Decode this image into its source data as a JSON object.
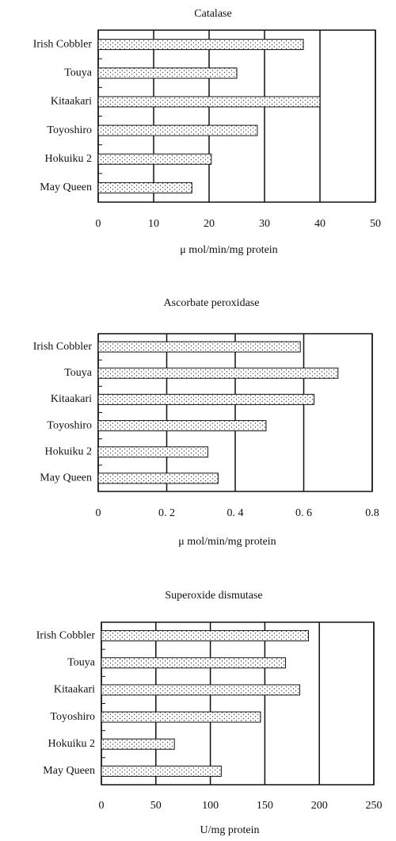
{
  "chart_data": [
    {
      "type": "bar",
      "orientation": "horizontal",
      "title": "Catalase",
      "categories": [
        "Irish Cobbler",
        "Touya",
        "Kitaakari",
        "Toyoshiro",
        "Hokuiku 2",
        "May Queen"
      ],
      "values": [
        37,
        25,
        40,
        28.7,
        20.4,
        16.9
      ],
      "xlim": [
        0,
        50
      ],
      "xticks": [
        0,
        10,
        20,
        30,
        40,
        50
      ],
      "grid": true,
      "x_label": "μ mol/min/mg protein"
    },
    {
      "type": "bar",
      "orientation": "horizontal",
      "title": "Ascorbate peroxidase",
      "categories": [
        "Irish Cobbler",
        "Touya",
        "Kitaakari",
        "Toyoshiro",
        "Hokuiku 2",
        "May Queen"
      ],
      "values": [
        0.59,
        0.7,
        0.63,
        0.49,
        0.32,
        0.35
      ],
      "xlim": [
        0,
        0.8
      ],
      "xticks": [
        0,
        {
          "value": 0.2,
          "label": "0. 2"
        },
        {
          "value": 0.4,
          "label": "0. 4"
        },
        {
          "value": 0.6,
          "label": "0. 6"
        },
        0.8
      ],
      "grid": true,
      "x_label": "μ mol/min/mg protein"
    },
    {
      "type": "bar",
      "orientation": "horizontal",
      "title": "Superoxide dismutase",
      "categories": [
        "Irish Cobbler",
        "Touya",
        "Kitaakari",
        "Toyoshiro",
        "Hokuiku 2",
        "May Queen"
      ],
      "values": [
        190,
        169,
        182,
        146,
        67,
        110
      ],
      "xlim": [
        0,
        250
      ],
      "xticks": [
        0,
        50,
        100,
        150,
        200,
        250
      ],
      "grid": true,
      "x_label": "U/mg protein"
    }
  ]
}
